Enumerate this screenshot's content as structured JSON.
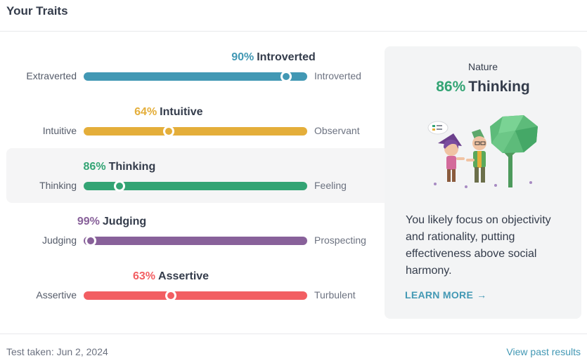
{
  "header": {
    "title": "Your Traits"
  },
  "traits": [
    {
      "pct": "90%",
      "name": "Introverted",
      "left_label": "Extraverted",
      "right_label": "Introverted",
      "percent_value": 90,
      "knob_position": 0.905,
      "color": "#4298b4",
      "selected": false
    },
    {
      "pct": "64%",
      "name": "Intuitive",
      "left_label": "Intuitive",
      "right_label": "Observant",
      "percent_value": 64,
      "knob_position": 0.38,
      "color": "#e4ae3a",
      "selected": false
    },
    {
      "pct": "86%",
      "name": "Thinking",
      "left_label": "Thinking",
      "right_label": "Feeling",
      "percent_value": 86,
      "knob_position": 0.16,
      "color": "#33a474",
      "selected": true
    },
    {
      "pct": "99%",
      "name": "Judging",
      "left_label": "Judging",
      "right_label": "Prospecting",
      "percent_value": 99,
      "knob_position": 0.03,
      "color": "#88619a",
      "selected": false
    },
    {
      "pct": "63%",
      "name": "Assertive",
      "left_label": "Assertive",
      "right_label": "Turbulent",
      "percent_value": 63,
      "knob_position": 0.39,
      "color": "#f25e62",
      "selected": false
    }
  ],
  "card": {
    "label": "Nature",
    "pct": "86%",
    "trait": "Thinking",
    "illustration": "thinking-characters-illustration",
    "description": "You likely focus on objectivity and rationality, putting effectiveness above social harmony.",
    "learn_more": "LEARN MORE",
    "arrow_icon": "arrow-right-icon"
  },
  "footer": {
    "test_taken": "Test taken: Jun 2, 2024",
    "past_results": "View past results"
  }
}
